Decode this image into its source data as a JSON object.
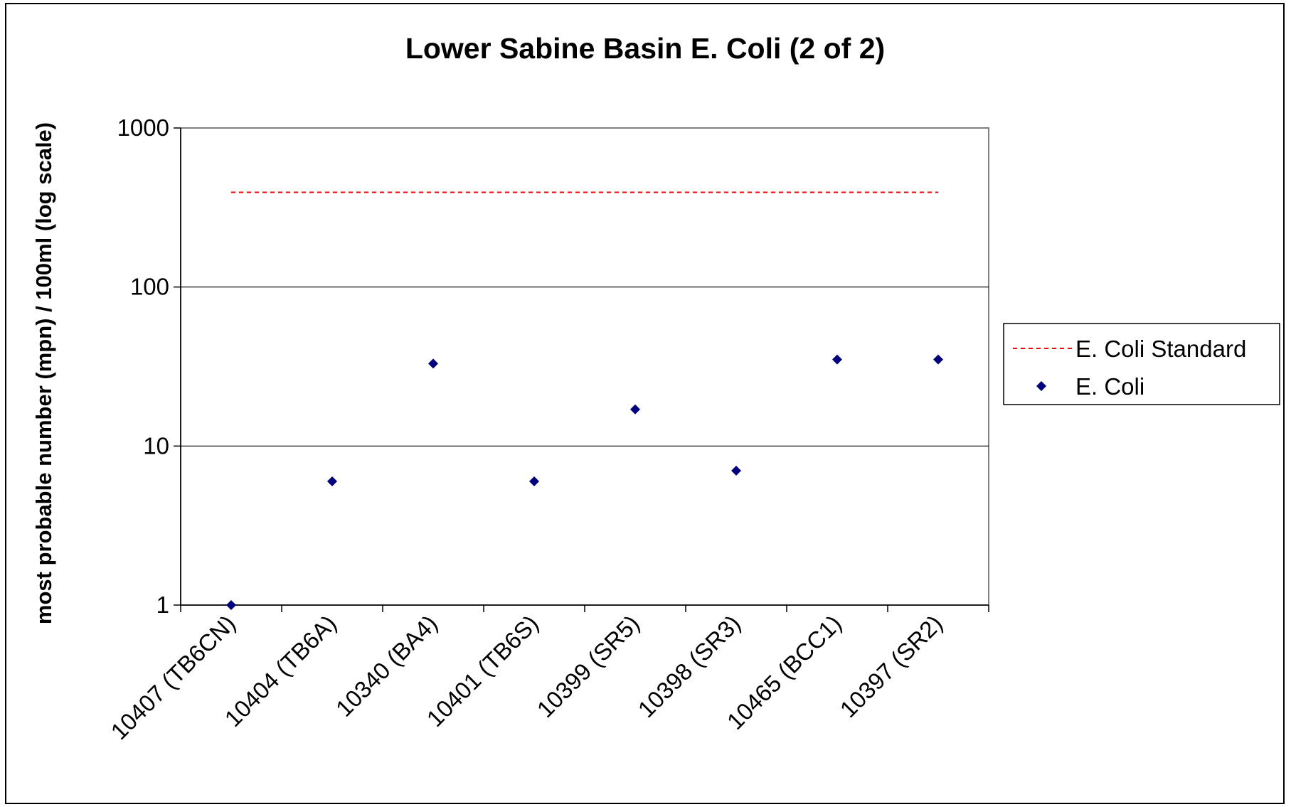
{
  "chart_data": {
    "type": "scatter",
    "title": "Lower Sabine Basin E. Coli (2 of 2)",
    "xlabel": "",
    "ylabel": "most probable number (mpn)  / 100ml (log scale)",
    "yscale": "log",
    "ylim": [
      1,
      1000
    ],
    "yticks": [
      1,
      10,
      100,
      1000
    ],
    "yticklabels": [
      "1",
      "10",
      "100",
      "1000"
    ],
    "grid": "horizontal",
    "legend_position": "right",
    "categories": [
      "10407 (TB6CN)",
      "10404 (TB6A)",
      "10340 (BA4)",
      "10401 (TB6S)",
      "10399 (SR5)",
      "10398 (SR3)",
      "10465 (BCC1)",
      "10397 (SR2)"
    ],
    "series": [
      {
        "name": "E. Coli Standard",
        "type": "line",
        "style": "dashed",
        "color": "#ff0000",
        "values": [
          394,
          394,
          394,
          394,
          394,
          394,
          394,
          394
        ]
      },
      {
        "name": "E. Coli",
        "type": "scatter",
        "marker": "diamond",
        "color": "#000080",
        "values": [
          1,
          6,
          33,
          6,
          17,
          7,
          35,
          35
        ]
      }
    ]
  }
}
